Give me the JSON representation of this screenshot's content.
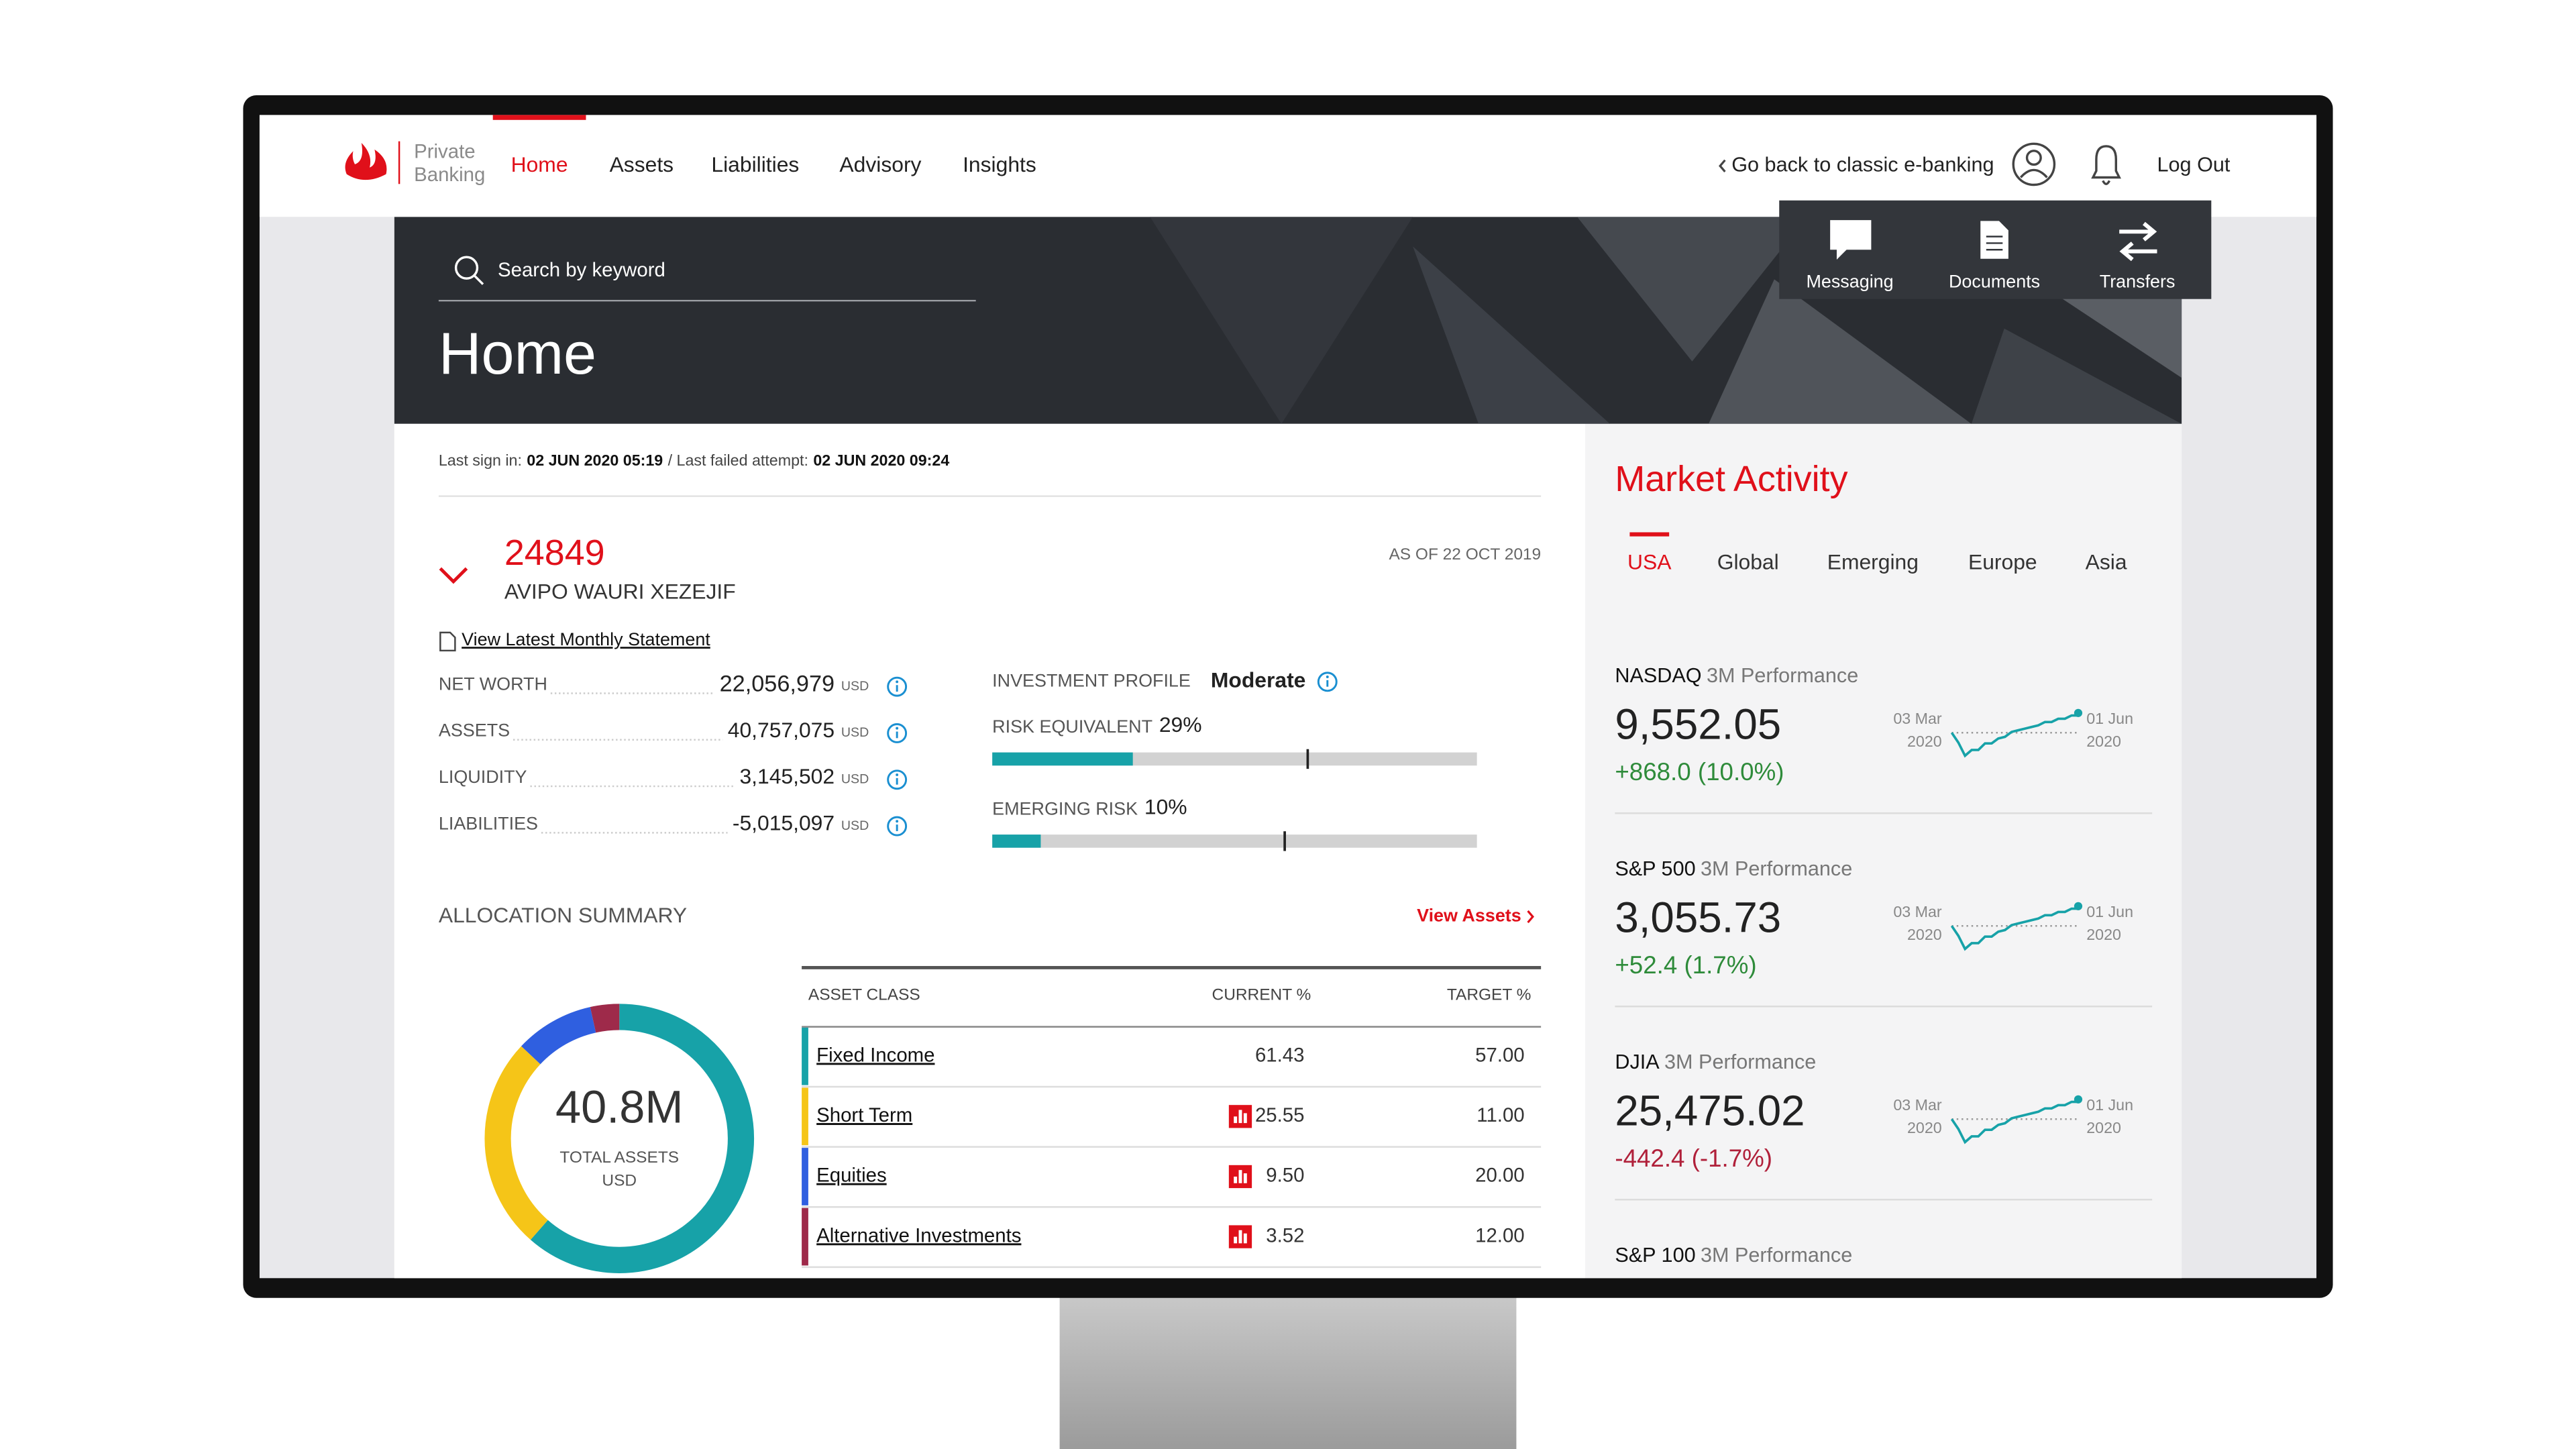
{
  "nav": {
    "brand": [
      "Private",
      "Banking"
    ],
    "items": [
      "Home",
      "Assets",
      "Liabilities",
      "Advisory",
      "Insights"
    ],
    "active": 0,
    "back_link": "Go back to classic e-banking",
    "logout": "Log Out"
  },
  "header": {
    "search_placeholder": "Search by keyword",
    "title": "Home",
    "actions": [
      "Messaging",
      "Documents",
      "Transfers"
    ]
  },
  "account": {
    "last_sign_in": "Last sign in:",
    "last_sign_in_date": "02 JUN 2020 05:19",
    "last_failed": "/ Last failed attempt:",
    "last_failed_date": "02 JUN 2020 09:24",
    "number": "24849",
    "name": "AVIPO WAURI XEZEJIF",
    "as_of": "AS OF 22 OCT 2019",
    "statement_link": "View Latest Monthly Statement"
  },
  "metrics": [
    {
      "label": "NET WORTH",
      "value": "22,056,979",
      "unit": "USD"
    },
    {
      "label": "ASSETS",
      "value": "40,757,075",
      "unit": "USD"
    },
    {
      "label": "LIQUIDITY",
      "value": "3,145,502",
      "unit": "USD"
    },
    {
      "label": "LIABILITIES",
      "value": "-5,015,097",
      "unit": "USD"
    }
  ],
  "profile": {
    "label": "INVESTMENT PROFILE",
    "value": "Moderate",
    "risks": [
      {
        "label": "RISK EQUIVALENT",
        "value": "29%"
      },
      {
        "label": "EMERGING RISK",
        "value": "10%"
      }
    ]
  },
  "allocation": {
    "title": "ALLOCATION SUMMARY",
    "link": "View Assets",
    "total": "40.8M",
    "total_label": "TOTAL ASSETS",
    "total_unit": "USD",
    "columns": [
      "ASSET CLASS",
      "CURRENT %",
      "TARGET %"
    ],
    "rows": [
      {
        "name": "Fixed Income",
        "current": "61.43",
        "target": "57.00",
        "color": "#17a2a8",
        "flag": false
      },
      {
        "name": "Short Term",
        "current": "25.55",
        "target": "11.00",
        "color": "#f5c518",
        "flag": true
      },
      {
        "name": "Equities",
        "current": "9.50",
        "target": "20.00",
        "color": "#2f5fe0",
        "flag": true
      },
      {
        "name": "Alternative Investments",
        "current": "3.52",
        "target": "12.00",
        "color": "#9e2a4a",
        "flag": true
      }
    ]
  },
  "market": {
    "title": "Market Activity",
    "tabs": [
      "USA",
      "Global",
      "Emerging",
      "Europe",
      "Asia"
    ],
    "active_tab": 0,
    "cards": [
      {
        "name": "NASDAQ",
        "period": "3M Performance",
        "value": "9,552.05",
        "change": "+868.0 (10.0%)",
        "direction": "up",
        "start": [
          "03 Mar",
          "2020"
        ],
        "end": [
          "01 Jun",
          "2020"
        ]
      },
      {
        "name": "S&P 500",
        "period": "3M Performance",
        "value": "3,055.73",
        "change": "+52.4 (1.7%)",
        "direction": "up",
        "start": [
          "03 Mar",
          "2020"
        ],
        "end": [
          "01 Jun",
          "2020"
        ]
      },
      {
        "name": "DJIA",
        "period": "3M Performance",
        "value": "25,475.02",
        "change": "-442.4 (-1.7%)",
        "direction": "down",
        "start": [
          "03 Mar",
          "2020"
        ],
        "end": [
          "01 Jun",
          "2020"
        ]
      },
      {
        "name": "S&P 100",
        "period": "3M Performance"
      }
    ]
  }
}
